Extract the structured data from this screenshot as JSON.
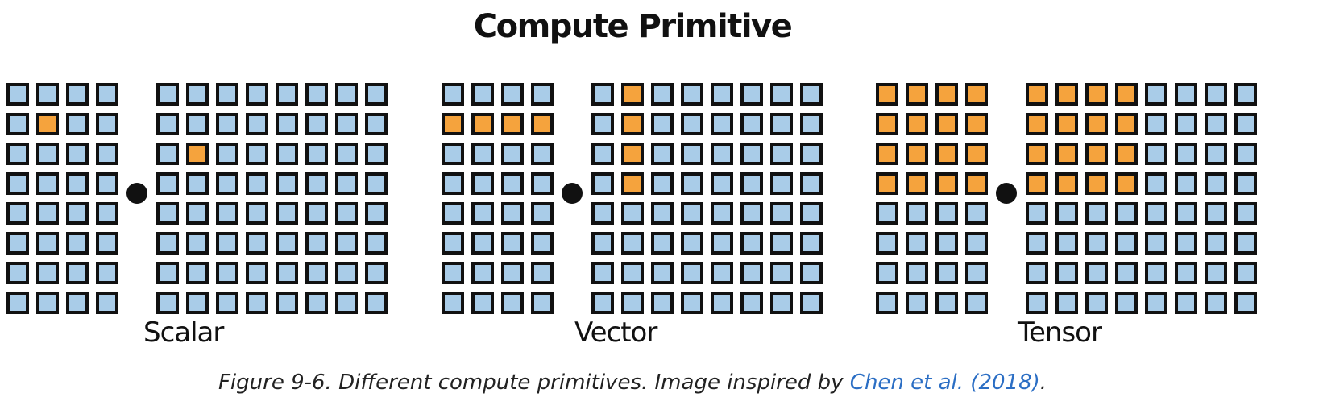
{
  "title": "Compute Primitive",
  "groups": [
    {
      "label": "Scalar",
      "left_highlight": [
        [
          1,
          1
        ]
      ],
      "right_highlight": [
        [
          2,
          1
        ]
      ]
    },
    {
      "label": "Vector",
      "left_highlight": [
        [
          1,
          0
        ],
        [
          1,
          1
        ],
        [
          1,
          2
        ],
        [
          1,
          3
        ]
      ],
      "right_highlight": [
        [
          0,
          1
        ],
        [
          1,
          1
        ],
        [
          2,
          1
        ],
        [
          3,
          1
        ]
      ]
    },
    {
      "label": "Tensor",
      "left_highlight": [
        [
          0,
          0
        ],
        [
          0,
          1
        ],
        [
          0,
          2
        ],
        [
          0,
          3
        ],
        [
          1,
          0
        ],
        [
          1,
          1
        ],
        [
          1,
          2
        ],
        [
          1,
          3
        ],
        [
          2,
          0
        ],
        [
          2,
          1
        ],
        [
          2,
          2
        ],
        [
          2,
          3
        ],
        [
          3,
          0
        ],
        [
          3,
          1
        ],
        [
          3,
          2
        ],
        [
          3,
          3
        ]
      ],
      "right_highlight": [
        [
          0,
          0
        ],
        [
          0,
          1
        ],
        [
          0,
          2
        ],
        [
          0,
          3
        ],
        [
          1,
          0
        ],
        [
          1,
          1
        ],
        [
          1,
          2
        ],
        [
          1,
          3
        ],
        [
          2,
          0
        ],
        [
          2,
          1
        ],
        [
          2,
          2
        ],
        [
          2,
          3
        ],
        [
          3,
          0
        ],
        [
          3,
          1
        ],
        [
          3,
          2
        ],
        [
          3,
          3
        ]
      ]
    }
  ],
  "caption": {
    "text": "Figure 9-6. Different compute primitives. Image inspired by ",
    "link": "Chen et al. (2018)",
    "end": "."
  },
  "colors": {
    "cell": "#a9cce8",
    "highlight": "#f5a33d",
    "border": "#111111",
    "link": "#2b6ec4"
  }
}
